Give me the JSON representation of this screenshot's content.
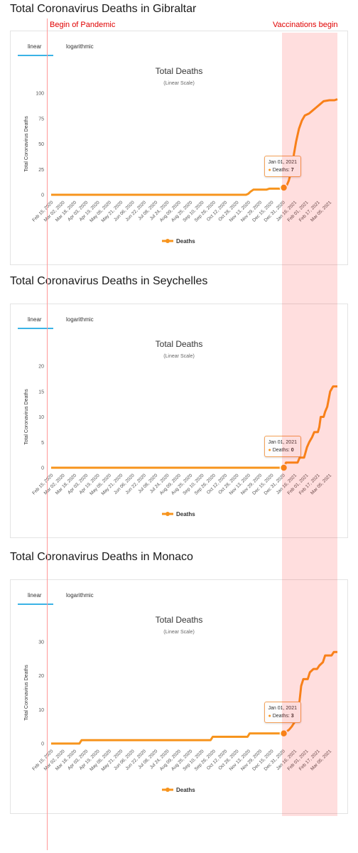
{
  "overlays": {
    "pandemic_label": "Begin of Pandemic",
    "vaccination_label": "Vaccinations begin",
    "line_color": "#ff9999",
    "band_color": "#ff0000"
  },
  "tabs": {
    "linear": "linear",
    "logarithmic": "logarithmic",
    "accent": "#3bb3e6"
  },
  "legend_icon": "orange-line-marker",
  "chart_data": [
    {
      "type": "line",
      "section_title": "Total Coronavirus Deaths in Gibraltar",
      "title": "Total Deaths",
      "subtitle": "(Linear Scale)",
      "ylabel": "Total Coronavirus Deaths",
      "ylim": [
        0,
        100
      ],
      "yticks": [
        "0",
        "25",
        "50",
        "75",
        "100"
      ],
      "xticks": [
        "Feb 15, 2020",
        "Mar 02, 2020",
        "Mar 18, 2020",
        "Apr 03, 2020",
        "Apr 19, 2020",
        "May 05, 2020",
        "May 21, 2020",
        "Jun 06, 2020",
        "Jun 22, 2020",
        "Jul 08, 2020",
        "Jul 24, 2020",
        "Aug 09, 2020",
        "Aug 25, 2020",
        "Sep 10, 2020",
        "Sep 26, 2020",
        "Oct 12, 2020",
        "Oct 28, 2020",
        "Nov 13, 2020",
        "Nov 29, 2020",
        "Dec 15, 2020",
        "Dec 31, 2020",
        "Jan 16, 2021",
        "Feb 01, 2021",
        "Feb 17, 2021",
        "Mar 05, 2021"
      ],
      "series": [
        {
          "name": "Deaths",
          "color": "#f7941d",
          "points": [
            [
              "2020-02-15",
              0
            ],
            [
              "2020-11-10",
              0
            ],
            [
              "2020-11-13",
              1
            ],
            [
              "2020-11-16",
              3
            ],
            [
              "2020-11-20",
              5
            ],
            [
              "2020-12-08",
              5
            ],
            [
              "2020-12-12",
              6
            ],
            [
              "2020-12-28",
              6
            ],
            [
              "2021-01-01",
              7
            ],
            [
              "2021-01-05",
              9
            ],
            [
              "2021-01-08",
              14
            ],
            [
              "2021-01-12",
              25
            ],
            [
              "2021-01-15",
              40
            ],
            [
              "2021-01-18",
              52
            ],
            [
              "2021-01-22",
              65
            ],
            [
              "2021-01-26",
              73
            ],
            [
              "2021-01-30",
              78
            ],
            [
              "2021-02-05",
              80
            ],
            [
              "2021-02-10",
              83
            ],
            [
              "2021-02-15",
              86
            ],
            [
              "2021-02-20",
              89
            ],
            [
              "2021-02-25",
              92
            ],
            [
              "2021-03-05",
              93
            ],
            [
              "2021-03-12",
              93
            ],
            [
              "2021-03-16",
              94
            ]
          ]
        }
      ],
      "tooltip": {
        "date": "Jan 01, 2021",
        "label": "Deaths",
        "value": 7,
        "x": "2021-01-01"
      }
    },
    {
      "type": "line",
      "section_title": "Total Coronavirus Deaths in Seychelles",
      "title": "Total Deaths",
      "subtitle": "(Linear Scale)",
      "ylabel": "Total Coronavirus Deaths",
      "ylim": [
        0,
        20
      ],
      "yticks": [
        "0",
        "5",
        "10",
        "15",
        "20"
      ],
      "xticks": [
        "Feb 15, 2020",
        "Mar 02, 2020",
        "Mar 18, 2020",
        "Apr 03, 2020",
        "Apr 19, 2020",
        "May 05, 2020",
        "May 21, 2020",
        "Jun 06, 2020",
        "Jun 22, 2020",
        "Jul 08, 2020",
        "Jul 24, 2020",
        "Aug 09, 2020",
        "Aug 25, 2020",
        "Sep 10, 2020",
        "Sep 26, 2020",
        "Oct 12, 2020",
        "Oct 28, 2020",
        "Nov 13, 2020",
        "Nov 29, 2020",
        "Dec 15, 2020",
        "Dec 31, 2020",
        "Jan 16, 2021",
        "Feb 01, 2021",
        "Feb 17, 2021",
        "Mar 05, 2021"
      ],
      "series": [
        {
          "name": "Deaths",
          "color": "#f7941d",
          "points": [
            [
              "2020-02-15",
              0
            ],
            [
              "2021-01-01",
              0
            ],
            [
              "2021-01-04",
              1
            ],
            [
              "2021-01-20",
              1
            ],
            [
              "2021-01-23",
              2
            ],
            [
              "2021-01-29",
              2
            ],
            [
              "2021-01-31",
              3
            ],
            [
              "2021-02-02",
              4
            ],
            [
              "2021-02-05",
              5
            ],
            [
              "2021-02-09",
              6
            ],
            [
              "2021-02-12",
              7
            ],
            [
              "2021-02-17",
              7
            ],
            [
              "2021-02-19",
              8
            ],
            [
              "2021-02-21",
              10
            ],
            [
              "2021-02-25",
              10
            ],
            [
              "2021-02-27",
              11
            ],
            [
              "2021-03-02",
              12
            ],
            [
              "2021-03-06",
              15
            ],
            [
              "2021-03-10",
              16
            ],
            [
              "2021-03-16",
              16
            ]
          ]
        }
      ],
      "tooltip": {
        "date": "Jan 01, 2021",
        "label": "Deaths",
        "value": 0,
        "x": "2021-01-01"
      }
    },
    {
      "type": "line",
      "section_title": "Total Coronavirus Deaths in Monaco",
      "title": "Total Deaths",
      "subtitle": "(Linear Scale)",
      "ylabel": "Total Coronavirus Deaths",
      "ylim": [
        0,
        30
      ],
      "yticks": [
        "0",
        "10",
        "20",
        "30"
      ],
      "xticks": [
        "Feb 15, 2020",
        "Mar 02, 2020",
        "Mar 18, 2020",
        "Apr 03, 2020",
        "Apr 19, 2020",
        "May 05, 2020",
        "May 21, 2020",
        "Jun 06, 2020",
        "Jun 22, 2020",
        "Jul 08, 2020",
        "Jul 24, 2020",
        "Aug 09, 2020",
        "Aug 25, 2020",
        "Sep 10, 2020",
        "Sep 26, 2020",
        "Oct 12, 2020",
        "Oct 28, 2020",
        "Nov 13, 2020",
        "Nov 29, 2020",
        "Dec 15, 2020",
        "Dec 31, 2020",
        "Jan 16, 2021",
        "Feb 01, 2021",
        "Feb 17, 2021",
        "Mar 05, 2021"
      ],
      "series": [
        {
          "name": "Deaths",
          "color": "#f7941d",
          "points": [
            [
              "2020-02-15",
              0
            ],
            [
              "2020-03-25",
              0
            ],
            [
              "2020-03-28",
              1
            ],
            [
              "2020-09-22",
              1
            ],
            [
              "2020-09-25",
              2
            ],
            [
              "2020-11-12",
              2
            ],
            [
              "2020-11-15",
              3
            ],
            [
              "2021-01-01",
              3
            ],
            [
              "2021-01-08",
              4
            ],
            [
              "2021-01-12",
              5
            ],
            [
              "2021-01-18",
              7
            ],
            [
              "2021-01-22",
              11
            ],
            [
              "2021-01-25",
              17
            ],
            [
              "2021-01-28",
              19
            ],
            [
              "2021-02-03",
              19
            ],
            [
              "2021-02-06",
              21
            ],
            [
              "2021-02-11",
              22
            ],
            [
              "2021-02-16",
              22
            ],
            [
              "2021-02-19",
              23
            ],
            [
              "2021-02-24",
              24
            ],
            [
              "2021-02-27",
              26
            ],
            [
              "2021-03-08",
              26
            ],
            [
              "2021-03-11",
              27
            ],
            [
              "2021-03-16",
              27
            ]
          ]
        }
      ],
      "tooltip": {
        "date": "Jan 01, 2021",
        "label": "Deaths",
        "value": 3,
        "x": "2021-01-01"
      }
    }
  ]
}
